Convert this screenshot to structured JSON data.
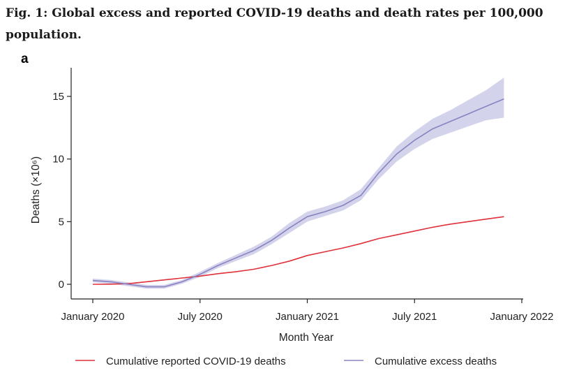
{
  "figure": {
    "title": "Fig. 1: Global excess and reported COVID-19 deaths and death rates per 100,000 population.",
    "panel_label": "a"
  },
  "chart_data": {
    "type": "line",
    "title": "",
    "xlabel": "Month Year",
    "ylabel": "Deaths",
    "ylabel_unit": "(×10⁶)",
    "x_ticks": [
      "January 2020",
      "July 2020",
      "January 2021",
      "July 2021",
      "January 2022"
    ],
    "y_ticks": [
      "0",
      "5",
      "10",
      "15"
    ],
    "x_range_months": [
      0,
      24
    ],
    "ylim": [
      -1,
      17
    ],
    "grid": false,
    "legend_placement": "bottom",
    "series": [
      {
        "name": "Cumulative reported COVID-19 deaths",
        "color": "#e0303a",
        "x_months": [
          0,
          1,
          2,
          3,
          4,
          5,
          6,
          7,
          8,
          9,
          10,
          11,
          12,
          13,
          14,
          15,
          16,
          17,
          18,
          19,
          20,
          21,
          22,
          23
        ],
        "y": [
          0,
          0.01,
          0.05,
          0.2,
          0.35,
          0.5,
          0.65,
          0.85,
          1.0,
          1.2,
          1.5,
          1.85,
          2.3,
          2.6,
          2.9,
          3.25,
          3.65,
          3.95,
          4.25,
          4.55,
          4.8,
          5.0,
          5.2,
          5.4
        ]
      },
      {
        "name": "Cumulative excess deaths",
        "color": "#8883c0",
        "band_color": "#c6c4e6",
        "x_months": [
          0,
          1,
          2,
          3,
          4,
          5,
          6,
          7,
          8,
          9,
          10,
          11,
          12,
          13,
          14,
          15,
          16,
          17,
          18,
          19,
          20,
          21,
          22,
          23
        ],
        "y": [
          0.3,
          0.2,
          0.0,
          -0.2,
          -0.2,
          0.2,
          0.8,
          1.5,
          2.1,
          2.7,
          3.5,
          4.5,
          5.4,
          5.8,
          6.3,
          7.1,
          8.9,
          10.4,
          11.5,
          12.4,
          13.0,
          13.6,
          14.2,
          14.8
        ],
        "lower": [
          0.15,
          0.05,
          -0.15,
          -0.35,
          -0.35,
          0.05,
          0.6,
          1.3,
          1.85,
          2.4,
          3.2,
          4.1,
          5.0,
          5.45,
          5.9,
          6.7,
          8.4,
          9.8,
          10.8,
          11.6,
          12.1,
          12.6,
          13.1,
          13.3
        ],
        "upper": [
          0.45,
          0.35,
          0.15,
          -0.05,
          -0.05,
          0.35,
          1.0,
          1.7,
          2.35,
          3.0,
          3.8,
          4.9,
          5.8,
          6.2,
          6.7,
          7.6,
          9.3,
          11.0,
          12.2,
          13.2,
          13.9,
          14.7,
          15.5,
          16.5
        ]
      }
    ]
  }
}
